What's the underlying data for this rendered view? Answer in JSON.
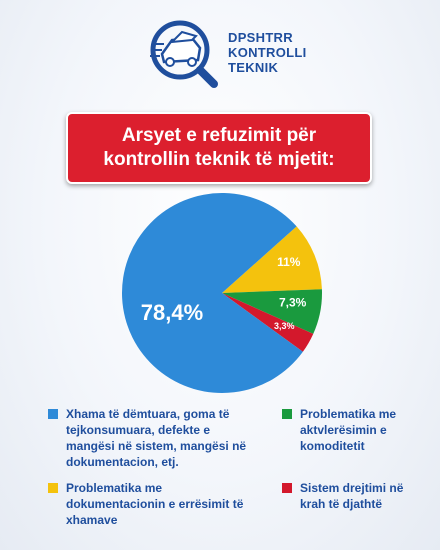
{
  "logo": {
    "line1": "DPSHTRR",
    "line2": "KONTROLLI",
    "line3": "TEKNIK"
  },
  "title": "Arsyet e refuzimit për kontrollin teknik të mjetit:",
  "colors": {
    "blue": "#2e8ad8",
    "yellow": "#f4c20d",
    "green": "#1a9a3e",
    "red": "#d3182c",
    "title_bg": "#dc1f2e",
    "brand": "#1f4e9d"
  },
  "chart_data": {
    "type": "pie",
    "slices": [
      {
        "label": "Xhama të dëmtuara, goma të tejkonsumuara, defekte e mangësi në sistem, mangësi në dokumentacion, etj.",
        "value": 78.4,
        "display": "78,4%",
        "color": "#2e8ad8"
      },
      {
        "label": "Problematika me dokumentacionin e errësimit të xhamave",
        "value": 11,
        "display": "11%",
        "color": "#f4c20d"
      },
      {
        "label": "Problematika me aktvlerësimin e komoditetit",
        "value": 7.3,
        "display": "7,3%",
        "color": "#1a9a3e"
      },
      {
        "label": "Sistem drejtimi në krah të djathtë",
        "value": 3.3,
        "display": "3,3%",
        "color": "#d3182c"
      }
    ],
    "legend_position": "bottom"
  },
  "legend": {
    "blue": "Xhama të dëmtuara, goma të tejkonsumuara, defekte e mangësi në sistem, mangësi në dokumentacion, etj.",
    "yellow": "Problematika me dokumentacionin e errësimit të xhamave",
    "green": "Problematika me aktvlerësimin e komoditetit",
    "red": "Sistem drejtimi në krah të djathtë"
  }
}
